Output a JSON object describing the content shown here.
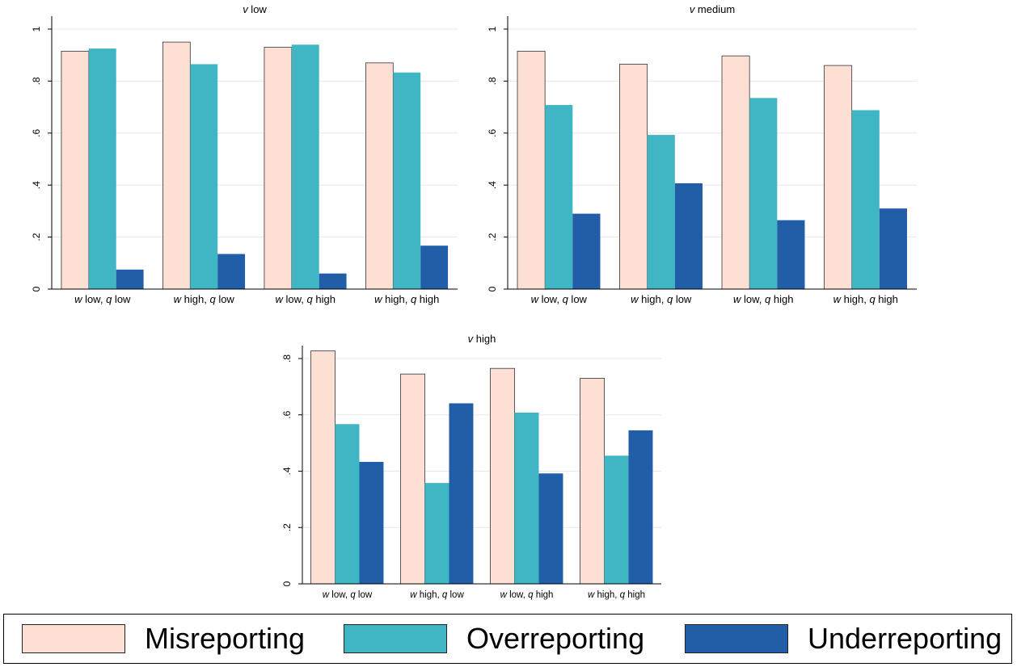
{
  "chart_data": [
    {
      "type": "bar",
      "title": "v low",
      "title_var": "v",
      "title_rest": " low",
      "categories": [
        {
          "label": "w low, q low",
          "parts": [
            [
              "w",
              true
            ],
            [
              " low, ",
              false
            ],
            [
              "q",
              true
            ],
            [
              " low",
              false
            ]
          ]
        },
        {
          "label": "w high, q low",
          "parts": [
            [
              "w",
              true
            ],
            [
              " high, ",
              false
            ],
            [
              "q",
              true
            ],
            [
              " low",
              false
            ]
          ]
        },
        {
          "label": "w low, q high",
          "parts": [
            [
              "w",
              true
            ],
            [
              " low, ",
              false
            ],
            [
              "q",
              true
            ],
            [
              " high",
              false
            ]
          ]
        },
        {
          "label": "w high, q high",
          "parts": [
            [
              "w",
              true
            ],
            [
              " high, ",
              false
            ],
            [
              "q",
              true
            ],
            [
              " high",
              false
            ]
          ]
        }
      ],
      "series": [
        {
          "name": "Misreporting",
          "values": [
            0.915,
            0.95,
            0.93,
            0.87
          ]
        },
        {
          "name": "Overreporting",
          "values": [
            0.925,
            0.865,
            0.94,
            0.833
          ]
        },
        {
          "name": "Underreporting",
          "values": [
            0.075,
            0.135,
            0.06,
            0.167
          ]
        }
      ],
      "ylim": [
        0,
        1
      ],
      "yticks": [
        0,
        0.2,
        0.4,
        0.6,
        0.8,
        1
      ],
      "ytick_labels": [
        "0",
        ".2",
        ".4",
        ".6",
        ".8",
        "1"
      ],
      "grid": true
    },
    {
      "type": "bar",
      "title": "v medium",
      "title_var": "v",
      "title_rest": " medium",
      "categories": [
        {
          "label": "w low, q low",
          "parts": [
            [
              "w",
              true
            ],
            [
              " low, ",
              false
            ],
            [
              "q",
              true
            ],
            [
              " low",
              false
            ]
          ]
        },
        {
          "label": "w high, q low",
          "parts": [
            [
              "w",
              true
            ],
            [
              " high, ",
              false
            ],
            [
              "q",
              true
            ],
            [
              " low",
              false
            ]
          ]
        },
        {
          "label": "w low, q high",
          "parts": [
            [
              "w",
              true
            ],
            [
              " low, ",
              false
            ],
            [
              "q",
              true
            ],
            [
              " high",
              false
            ]
          ]
        },
        {
          "label": "w high, q high",
          "parts": [
            [
              "w",
              true
            ],
            [
              " high, ",
              false
            ],
            [
              "q",
              true
            ],
            [
              " high",
              false
            ]
          ]
        }
      ],
      "series": [
        {
          "name": "Misreporting",
          "values": [
            0.915,
            0.865,
            0.897,
            0.86
          ]
        },
        {
          "name": "Overreporting",
          "values": [
            0.708,
            0.593,
            0.735,
            0.688
          ]
        },
        {
          "name": "Underreporting",
          "values": [
            0.29,
            0.407,
            0.265,
            0.31
          ]
        }
      ],
      "ylim": [
        0,
        1
      ],
      "yticks": [
        0,
        0.2,
        0.4,
        0.6,
        0.8,
        1
      ],
      "ytick_labels": [
        "0",
        ".2",
        ".4",
        ".6",
        ".8",
        "1"
      ],
      "grid": true
    },
    {
      "type": "bar",
      "title": "v high",
      "title_var": "v",
      "title_rest": " high",
      "categories": [
        {
          "label": "w low, q low",
          "parts": [
            [
              "w",
              true
            ],
            [
              " low, ",
              false
            ],
            [
              "q",
              true
            ],
            [
              " low",
              false
            ]
          ]
        },
        {
          "label": "w high, q low",
          "parts": [
            [
              "w",
              true
            ],
            [
              " high, ",
              false
            ],
            [
              "q",
              true
            ],
            [
              " low",
              false
            ]
          ]
        },
        {
          "label": "w low, q high",
          "parts": [
            [
              "w",
              true
            ],
            [
              " low, ",
              false
            ],
            [
              "q",
              true
            ],
            [
              " high",
              false
            ]
          ]
        },
        {
          "label": "w high, q high",
          "parts": [
            [
              "w",
              true
            ],
            [
              " high, ",
              false
            ],
            [
              "q",
              true
            ],
            [
              " high",
              false
            ]
          ]
        }
      ],
      "series": [
        {
          "name": "Misreporting",
          "values": [
            0.827,
            0.745,
            0.765,
            0.73
          ]
        },
        {
          "name": "Overreporting",
          "values": [
            0.567,
            0.358,
            0.608,
            0.455
          ]
        },
        {
          "name": "Underreporting",
          "values": [
            0.433,
            0.641,
            0.392,
            0.545
          ]
        }
      ],
      "ylim": [
        0,
        0.8
      ],
      "yticks": [
        0,
        0.2,
        0.4,
        0.6,
        0.8
      ],
      "ytick_labels": [
        "0",
        ".2",
        ".4",
        ".6",
        ".8"
      ],
      "grid": true
    }
  ],
  "legend": {
    "placement": "bottom",
    "items": [
      {
        "label": "Misreporting",
        "color": "#fde0d3"
      },
      {
        "label": "Overreporting",
        "color": "#40b6c4"
      },
      {
        "label": "Underreporting",
        "color": "#225ea8"
      }
    ]
  },
  "colors": {
    "misreporting": "#fde0d3",
    "overreporting": "#40b6c4",
    "underreporting": "#225ea8",
    "grid": "#e8e8e8",
    "axis": "#000000"
  }
}
